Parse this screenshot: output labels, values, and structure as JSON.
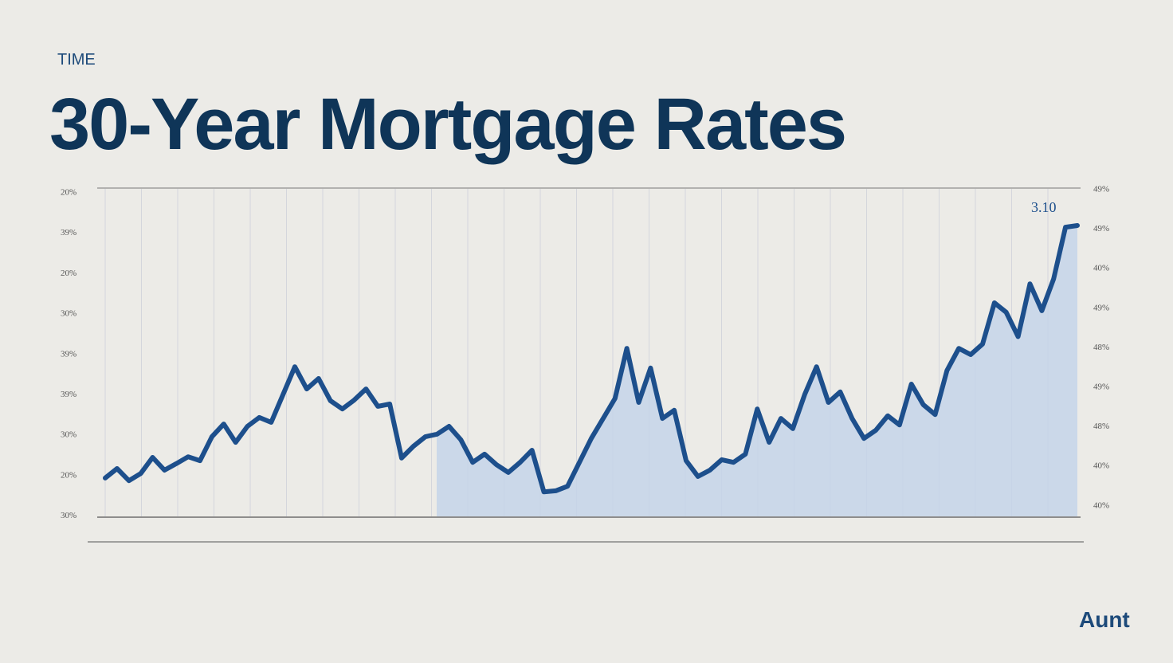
{
  "chart_data": {
    "type": "line",
    "kicker": "TIME",
    "title": "30-Year Mortgage Rates",
    "brand": "Aunt",
    "annotation": "3.10",
    "left_axis_labels": [
      "20%",
      "39%",
      "20%",
      "30%",
      "39%",
      "39%",
      "30%",
      "20%",
      "30%"
    ],
    "right_axis_labels": [
      "49%",
      "49%",
      "40%",
      "49%",
      "48%",
      "49%",
      "48%",
      "40%",
      "40%"
    ],
    "ylim": [
      0,
      100
    ],
    "color": "#1d4f8c",
    "fill": "#c3d3ea",
    "values": [
      11.7,
      14.6,
      10.9,
      13.1,
      18.0,
      14.1,
      16.1,
      18.2,
      17.0,
      24.3,
      28.2,
      22.6,
      27.5,
      30.2,
      28.7,
      37.2,
      45.7,
      38.9,
      42.1,
      35.3,
      32.8,
      35.5,
      38.9,
      33.6,
      34.3,
      17.8,
      21.4,
      24.3,
      25.1,
      27.5,
      23.4,
      16.5,
      19.0,
      15.8,
      13.4,
      16.5,
      20.2,
      7.5,
      7.8,
      9.2,
      16.5,
      23.8,
      29.9,
      36.0,
      51.3,
      34.8,
      45.3,
      29.9,
      32.4,
      17.0,
      12.2,
      14.1,
      17.3,
      16.5,
      19.0,
      32.8,
      22.6,
      29.9,
      26.8,
      37.2,
      45.7,
      34.8,
      38.0,
      29.9,
      23.8,
      26.3,
      30.7,
      27.9,
      40.4,
      34.1,
      31.1,
      44.5,
      51.3,
      49.4,
      52.6,
      65.2,
      62.3,
      54.9,
      71.0,
      62.8,
      72.5,
      88.3,
      88.8
    ]
  }
}
